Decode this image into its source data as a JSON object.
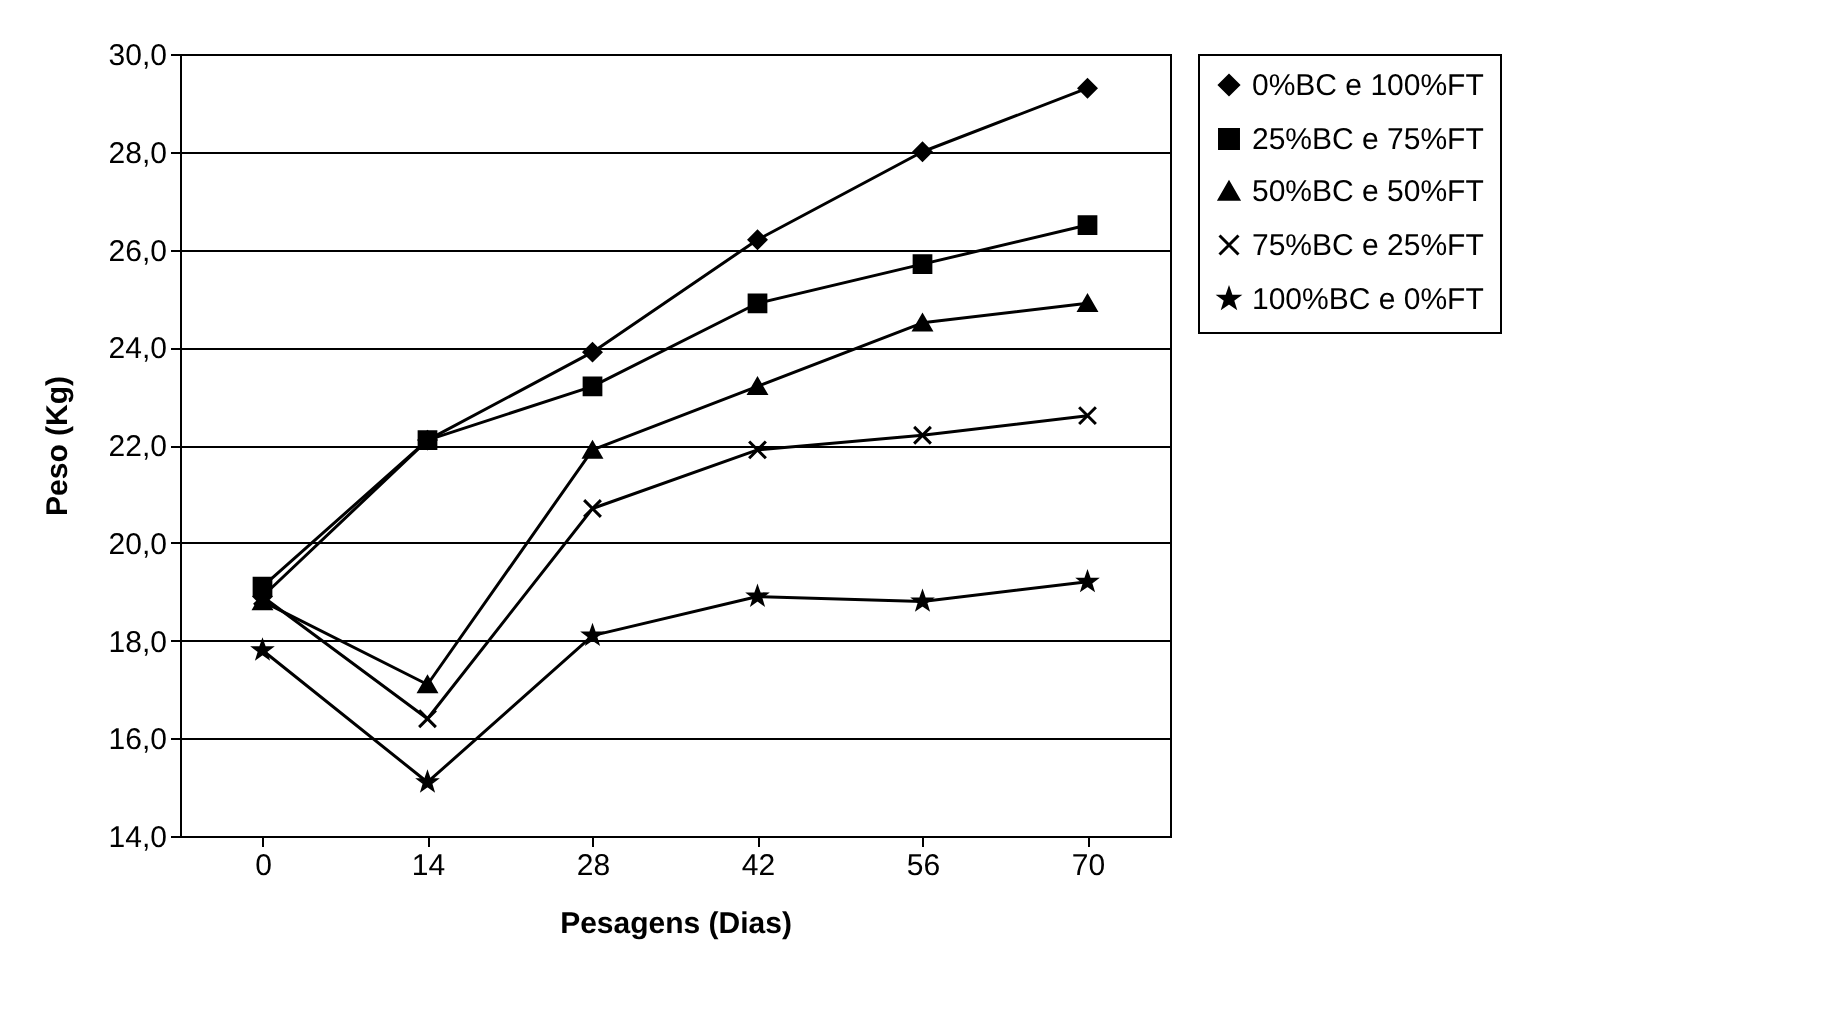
{
  "chart_data": {
    "type": "line",
    "xlabel": "Pesagens (Dias)",
    "ylabel": "Peso (Kg)",
    "categories": [
      "0",
      "14",
      "28",
      "42",
      "56",
      "70"
    ],
    "series": [
      {
        "name": "0%BC e 100%FT",
        "color": "#000000",
        "marker": "diamond",
        "values": [
          18.9,
          22.1,
          23.9,
          26.2,
          28.0,
          29.3
        ]
      },
      {
        "name": "25%BC e 75%FT",
        "color": "#000000",
        "marker": "square",
        "values": [
          19.1,
          22.1,
          23.2,
          24.9,
          25.7,
          26.5
        ]
      },
      {
        "name": "50%BC e 50%FT",
        "color": "#000000",
        "marker": "triangle",
        "values": [
          18.8,
          17.1,
          21.9,
          23.2,
          24.5,
          24.9
        ]
      },
      {
        "name": "75%BC e 25%FT",
        "color": "#000000",
        "marker": "cross",
        "values": [
          18.9,
          16.4,
          20.7,
          21.9,
          22.2,
          22.6
        ]
      },
      {
        "name": "100%BC e 0%FT",
        "color": "#000000",
        "marker": "star",
        "values": [
          17.8,
          15.1,
          18.1,
          18.9,
          18.8,
          19.2
        ]
      }
    ],
    "ylim": [
      14,
      30
    ],
    "yticks": [
      {
        "value": 14,
        "label": "14,0"
      },
      {
        "value": 16,
        "label": "16,0"
      },
      {
        "value": 18,
        "label": "18,0"
      },
      {
        "value": 20,
        "label": "20,0"
      },
      {
        "value": 22,
        "label": "22,0"
      },
      {
        "value": 24,
        "label": "24,0"
      },
      {
        "value": 26,
        "label": "26,0"
      },
      {
        "value": 28,
        "label": "28,0"
      },
      {
        "value": 30,
        "label": "30,0"
      }
    ],
    "grid": "y",
    "legend": "right",
    "line_style": "solid"
  }
}
